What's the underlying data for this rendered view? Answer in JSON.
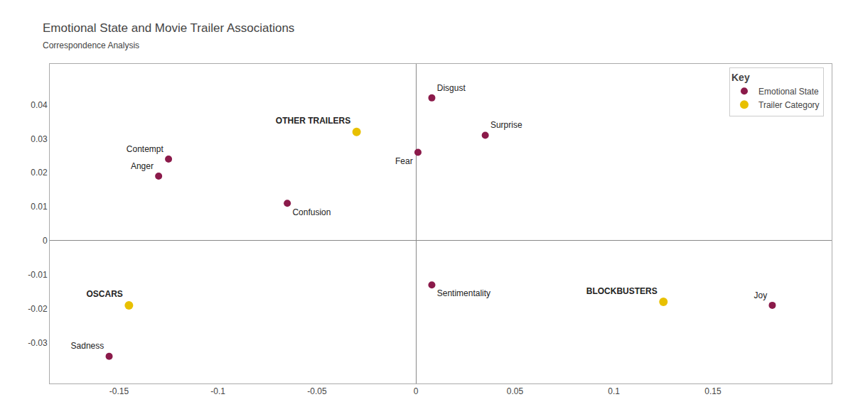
{
  "chart_data": {
    "type": "scatter",
    "title": "Emotional State and Movie Trailer Associations",
    "subtitle": "Correspondence Analysis",
    "legend": "upper right",
    "legend_title": "Key",
    "grid": false,
    "series": [
      {
        "name": "Emotional State",
        "color": "#8B1A4A",
        "labels": [
          "Disgust",
          "Fear",
          "Surprise",
          "Contempt",
          "Anger",
          "Confusion",
          "Sentimentality",
          "Joy",
          "Sadness"
        ],
        "x": [
          0.008,
          0.001,
          0.035,
          -0.125,
          -0.13,
          -0.065,
          0.008,
          0.18,
          -0.155
        ],
        "y": [
          0.042,
          0.026,
          0.031,
          0.024,
          0.019,
          0.011,
          -0.013,
          -0.019,
          -0.034
        ]
      },
      {
        "name": "Trailer Category",
        "color": "#E8C000",
        "labels": [
          "OTHER TRAILERS",
          "OSCARS",
          "BLOCKBUSTERS"
        ],
        "x": [
          -0.03,
          -0.145,
          0.125
        ],
        "y": [
          0.032,
          -0.019,
          -0.018
        ]
      }
    ],
    "xlim": [
      -0.185,
      0.21
    ],
    "ylim": [
      -0.042,
      0.052
    ],
    "xticks": [
      -0.15,
      -0.1,
      -0.05,
      0,
      0.05,
      0.1,
      0.15
    ],
    "yticks": [
      -0.03,
      -0.02,
      -0.01,
      0,
      0.01,
      0.02,
      0.03,
      0.04
    ]
  }
}
